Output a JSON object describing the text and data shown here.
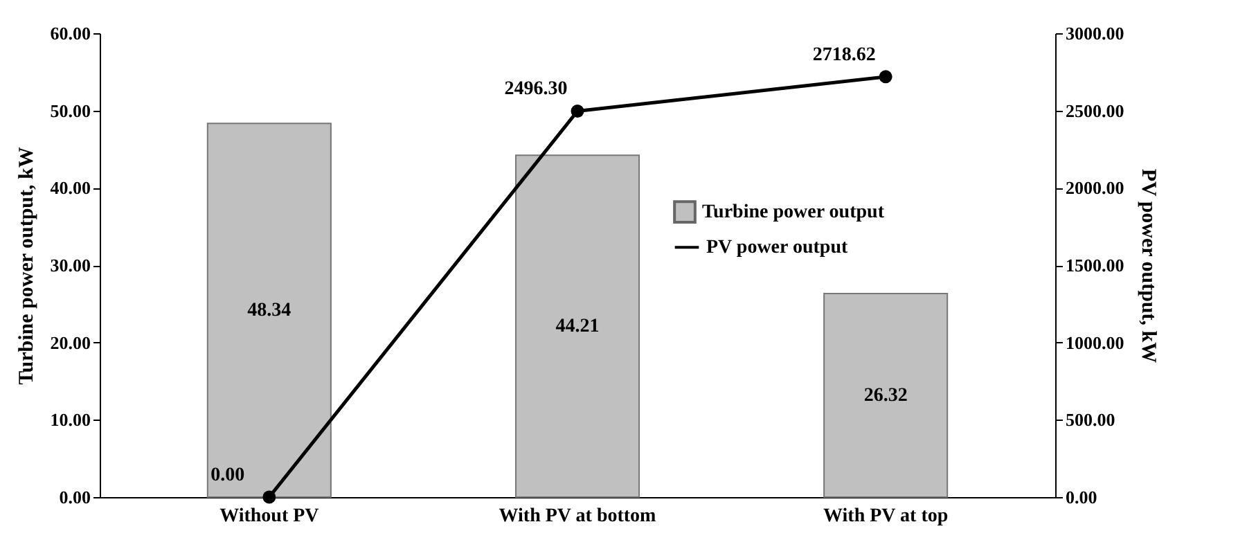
{
  "chart_data": {
    "type": "bar",
    "categories": [
      "Without PV",
      "With PV at bottom",
      "With PV at top"
    ],
    "ylabel": "Turbine power output, kW",
    "y2label": "PV power output, kW",
    "ylim": [
      0,
      60
    ],
    "yticks": [
      {
        "value": 0,
        "label": "0.00"
      },
      {
        "value": 10,
        "label": "10.00"
      },
      {
        "value": 20,
        "label": "20.00"
      },
      {
        "value": 30,
        "label": "30.00"
      },
      {
        "value": 40,
        "label": "40.00"
      },
      {
        "value": 50,
        "label": "50.00"
      },
      {
        "value": 60,
        "label": "60.00"
      }
    ],
    "y2lim": [
      0,
      3000
    ],
    "y2ticks": [
      {
        "value": 0,
        "label": "0.00"
      },
      {
        "value": 500,
        "label": "500.00"
      },
      {
        "value": 1000,
        "label": "1000.00"
      },
      {
        "value": 1500,
        "label": "1500.00"
      },
      {
        "value": 2000,
        "label": "2000.00"
      },
      {
        "value": 2500,
        "label": "2500.00"
      },
      {
        "value": 3000,
        "label": "3000.00"
      }
    ],
    "series": [
      {
        "name": "Turbine power output",
        "color": "#c0c0c0",
        "values": [
          48.34,
          44.21,
          26.32
        ],
        "value_labels": [
          "48.34",
          "44.21",
          "26.32"
        ]
      },
      {
        "name": "PV power output",
        "type": "line",
        "axis": "y2",
        "color": "#000000",
        "marker": "circle",
        "values": [
          0.0,
          2496.3,
          2718.62
        ],
        "value_labels": [
          "0.00",
          "2496.30",
          "2718.62"
        ]
      }
    ],
    "grid": false,
    "legend": "right"
  }
}
